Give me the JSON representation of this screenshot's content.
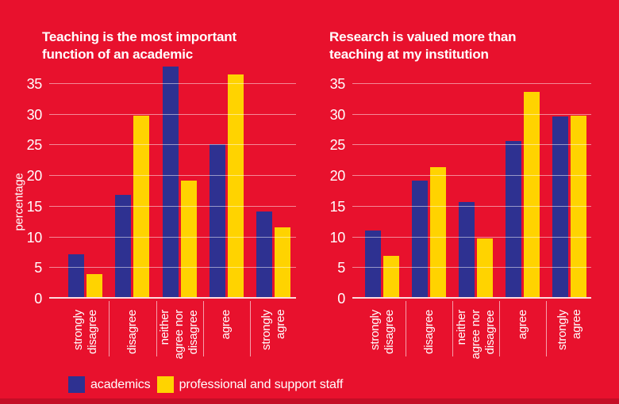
{
  "page": {
    "background": "#e8112d",
    "bottom_strip_color": "#c40e26",
    "text_color": "#ffffff"
  },
  "legend": [
    {
      "label": "academics",
      "color": "#2e3191"
    },
    {
      "label": "professional and support staff",
      "color": "#ffd300"
    }
  ],
  "chart_data": [
    {
      "type": "bar",
      "title": "Teaching is the most important function of an academic",
      "title_lines": [
        "Teaching is the most important",
        "function of an academic"
      ],
      "ylabel": "percentage",
      "xlabel": "",
      "ylim": [
        0,
        40
      ],
      "yticks": [
        0,
        5,
        10,
        15,
        20,
        25,
        30,
        35
      ],
      "grid": true,
      "legend_position": "bottom",
      "categories": [
        "strongly disagree",
        "disagree",
        "neither agree nor disagree",
        "agree",
        "strongly agree"
      ],
      "category_lines": [
        [
          "strongly",
          "disagree"
        ],
        [
          "disagree"
        ],
        [
          "neither",
          "agree nor",
          "disagree"
        ],
        [
          "agree"
        ],
        [
          "strongly",
          "agree"
        ]
      ],
      "series": [
        {
          "name": "academics",
          "values": [
            7.0,
            16.6,
            37.5,
            24.9,
            13.9
          ]
        },
        {
          "name": "professional and support staff",
          "values": [
            3.8,
            29.5,
            19.0,
            36.3,
            11.3
          ]
        }
      ]
    },
    {
      "type": "bar",
      "title": "Research is valued more than teaching at my institution",
      "title_lines": [
        "Research is valued more than",
        "teaching at my institution"
      ],
      "ylabel": "percentage",
      "xlabel": "",
      "ylim": [
        0,
        40
      ],
      "yticks": [
        0,
        5,
        10,
        15,
        20,
        25,
        30,
        35
      ],
      "grid": true,
      "legend_position": "bottom",
      "categories": [
        "strongly disagree",
        "disagree",
        "neither agree nor disagree",
        "agree",
        "strongly agree"
      ],
      "category_lines": [
        [
          "strongly",
          "disagree"
        ],
        [
          "disagree"
        ],
        [
          "neither",
          "agree nor",
          "disagree"
        ],
        [
          "agree"
        ],
        [
          "strongly",
          "agree"
        ]
      ],
      "series": [
        {
          "name": "academics",
          "values": [
            10.9,
            19.0,
            15.5,
            25.4,
            29.4
          ]
        },
        {
          "name": "professional and support staff",
          "values": [
            6.7,
            21.1,
            9.5,
            33.4,
            29.5
          ]
        }
      ]
    }
  ]
}
